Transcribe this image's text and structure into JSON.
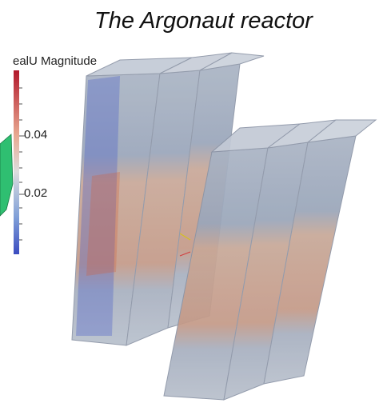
{
  "title": "The Argonaut reactor",
  "colorbar": {
    "title": "ealU Magnitude",
    "ticks": [
      0.04,
      0.02
    ]
  }
}
